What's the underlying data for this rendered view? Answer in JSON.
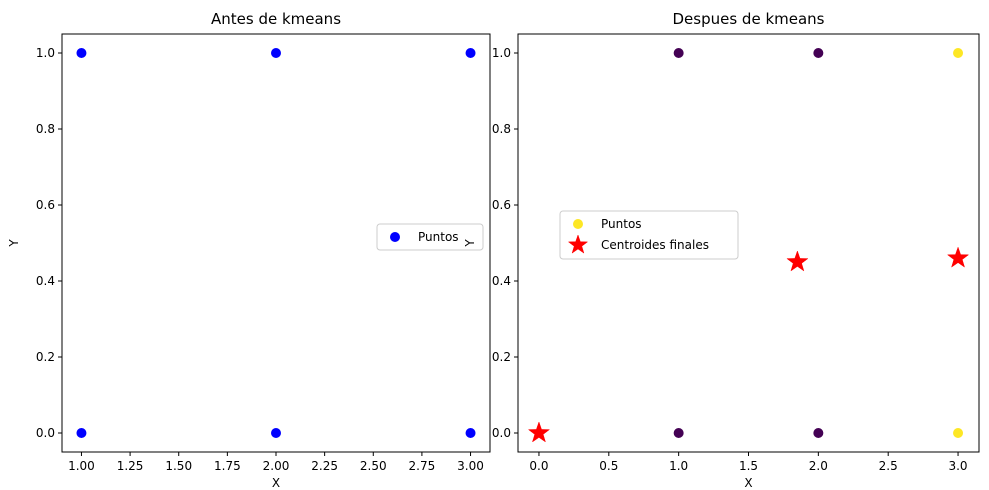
{
  "chart_data": [
    {
      "type": "scatter",
      "title": "Antes de kmeans",
      "xlabel": "X",
      "ylabel": "Y",
      "xlim": [
        0.9,
        3.1
      ],
      "ylim": [
        -0.05,
        1.05
      ],
      "xticks": [
        1.0,
        1.25,
        1.5,
        1.75,
        2.0,
        2.25,
        2.5,
        2.75,
        3.0
      ],
      "xtick_labels": [
        "1.00",
        "1.25",
        "1.50",
        "1.75",
        "2.00",
        "2.25",
        "2.50",
        "2.75",
        "3.00"
      ],
      "yticks": [
        0.0,
        0.2,
        0.4,
        0.6,
        0.8,
        1.0
      ],
      "ytick_labels": [
        "0.0",
        "0.2",
        "0.4",
        "0.6",
        "0.8",
        "1.0"
      ],
      "grid": false,
      "legend": "center-right",
      "series": [
        {
          "name": "Puntos",
          "marker": "circle",
          "color": "#0000ff",
          "points": [
            {
              "x": 1,
              "y": 0
            },
            {
              "x": 1,
              "y": 1
            },
            {
              "x": 2,
              "y": 0
            },
            {
              "x": 2,
              "y": 1
            },
            {
              "x": 3,
              "y": 0
            },
            {
              "x": 3,
              "y": 1
            }
          ]
        }
      ]
    },
    {
      "type": "scatter",
      "title": "Despues de kmeans",
      "xlabel": "X",
      "ylabel": "Y",
      "xlim": [
        -0.15,
        3.15
      ],
      "ylim": [
        -0.05,
        1.05
      ],
      "xticks": [
        0.0,
        0.5,
        1.0,
        1.5,
        2.0,
        2.5,
        3.0
      ],
      "xtick_labels": [
        "0.0",
        "0.5",
        "1.0",
        "1.5",
        "2.0",
        "2.5",
        "3.0"
      ],
      "yticks": [
        0.0,
        0.2,
        0.4,
        0.6,
        0.8,
        1.0
      ],
      "ytick_labels": [
        "0.0",
        "0.2",
        "0.4",
        "0.6",
        "0.8",
        "1.0"
      ],
      "grid": false,
      "legend": "center-left",
      "series": [
        {
          "name": "Puntos",
          "marker": "circle",
          "legend_color": "#fde725",
          "points": [
            {
              "x": 1,
              "y": 0,
              "color": "#440154"
            },
            {
              "x": 1,
              "y": 1,
              "color": "#440154"
            },
            {
              "x": 2,
              "y": 0,
              "color": "#440154"
            },
            {
              "x": 2,
              "y": 1,
              "color": "#440154"
            },
            {
              "x": 3,
              "y": 0,
              "color": "#fde725"
            },
            {
              "x": 3,
              "y": 1,
              "color": "#fde725"
            }
          ]
        },
        {
          "name": "Centroides finales",
          "marker": "star",
          "color": "#ff0000",
          "points": [
            {
              "x": 0.0,
              "y": 0.0
            },
            {
              "x": 1.85,
              "y": 0.45
            },
            {
              "x": 3.0,
              "y": 0.46
            }
          ]
        }
      ]
    }
  ]
}
